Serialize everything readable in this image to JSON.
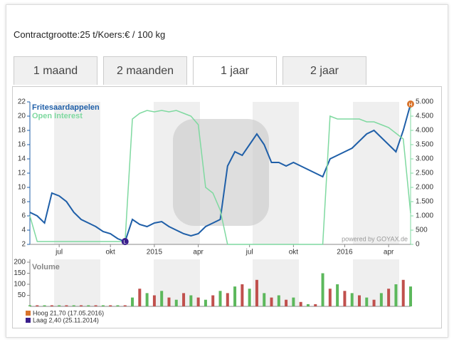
{
  "header": {
    "info": "Contractgrootte:25 t/Koers:€ / 100 kg"
  },
  "tabs": [
    "1 maand",
    "2 maanden",
    "1 jaar",
    "2 jaar"
  ],
  "chart_data": {
    "type": "line",
    "categories": [
      null,
      null,
      null,
      null,
      "jul",
      null,
      null,
      null,
      null,
      null,
      null,
      "okt",
      null,
      null,
      null,
      null,
      null,
      "2015",
      null,
      null,
      null,
      null,
      null,
      "apr",
      null,
      null,
      null,
      null,
      null,
      null,
      "jul",
      null,
      null,
      null,
      null,
      null,
      "okt",
      null,
      null,
      null,
      null,
      null,
      null,
      "2016",
      null,
      null,
      null,
      null,
      null,
      "apr",
      null,
      null,
      null
    ],
    "series": [
      {
        "name": "Fritesaardappelen",
        "color": "#1f5fa8",
        "values": [
          6.5,
          6,
          5,
          9.2,
          8.8,
          8,
          6.5,
          5.5,
          5,
          4.5,
          3.8,
          3.5,
          2.8,
          2.4,
          5.5,
          4.8,
          4.5,
          5,
          5.2,
          4.5,
          4,
          3.5,
          3.2,
          3.5,
          4.5,
          5,
          5.5,
          13,
          15,
          14.5,
          16,
          17.5,
          16,
          13.5,
          13.5,
          13,
          13.5,
          13,
          12.5,
          12,
          11.5,
          14,
          14.5,
          15,
          15.5,
          16.5,
          17.5,
          18,
          17,
          16,
          15,
          18,
          21.7
        ]
      },
      {
        "name": "Open Interest",
        "color": "#7fd9a0",
        "axis": "y2",
        "values": [
          1000,
          100,
          100,
          100,
          100,
          100,
          100,
          100,
          100,
          100,
          100,
          100,
          100,
          100,
          4400,
          4600,
          4700,
          4650,
          4700,
          4650,
          4700,
          4600,
          4500,
          4200,
          2000,
          1800,
          1200,
          0,
          0,
          0,
          0,
          0,
          0,
          0,
          0,
          0,
          0,
          0,
          0,
          0,
          0,
          4500,
          4400,
          4400,
          4400,
          4400,
          4300,
          4300,
          4200,
          4100,
          3900,
          3700,
          1100
        ]
      }
    ],
    "ylim": [
      2,
      22
    ],
    "yticks": [
      2,
      4,
      6,
      8,
      10,
      12,
      14,
      16,
      18,
      20,
      22
    ],
    "y2lim": [
      0,
      5000
    ],
    "y2ticks": [
      0,
      500,
      {
        "value": 1000,
        "label": "1.000"
      },
      {
        "value": 1500,
        "label": "1.500"
      },
      {
        "value": 2000,
        "label": "2.000"
      },
      {
        "value": 2500,
        "label": "2.500"
      },
      {
        "value": 3000,
        "label": "3.000"
      },
      {
        "value": 3500,
        "label": "3.500"
      },
      {
        "value": 4000,
        "label": "4.000"
      },
      {
        "value": 4500,
        "label": "4.500"
      },
      {
        "value": 5000,
        "label": "5.000"
      }
    ],
    "high_marker": "H",
    "low_marker": "L",
    "watermark": "powered by GOYAX.de",
    "volume": {
      "type": "bar",
      "name": "Volume",
      "color": "#5cb85c",
      "values": [
        5,
        5,
        5,
        5,
        5,
        5,
        5,
        5,
        5,
        5,
        5,
        5,
        5,
        5,
        40,
        80,
        60,
        50,
        70,
        40,
        30,
        60,
        50,
        40,
        30,
        50,
        70,
        60,
        90,
        100,
        80,
        120,
        60,
        40,
        50,
        30,
        40,
        20,
        10,
        10,
        150,
        80,
        100,
        70,
        60,
        50,
        40,
        30,
        60,
        80,
        100,
        120,
        90
      ],
      "ylim": [
        0,
        200
      ],
      "yticks": [
        50,
        100,
        150,
        200
      ]
    },
    "annotations": [
      {
        "text": "Hoog 21,70 (17.05.2016)",
        "color": "#d9742c"
      },
      {
        "text": "Laag 2,40 (25.11.2014)",
        "color": "#3a1f8c"
      }
    ]
  }
}
